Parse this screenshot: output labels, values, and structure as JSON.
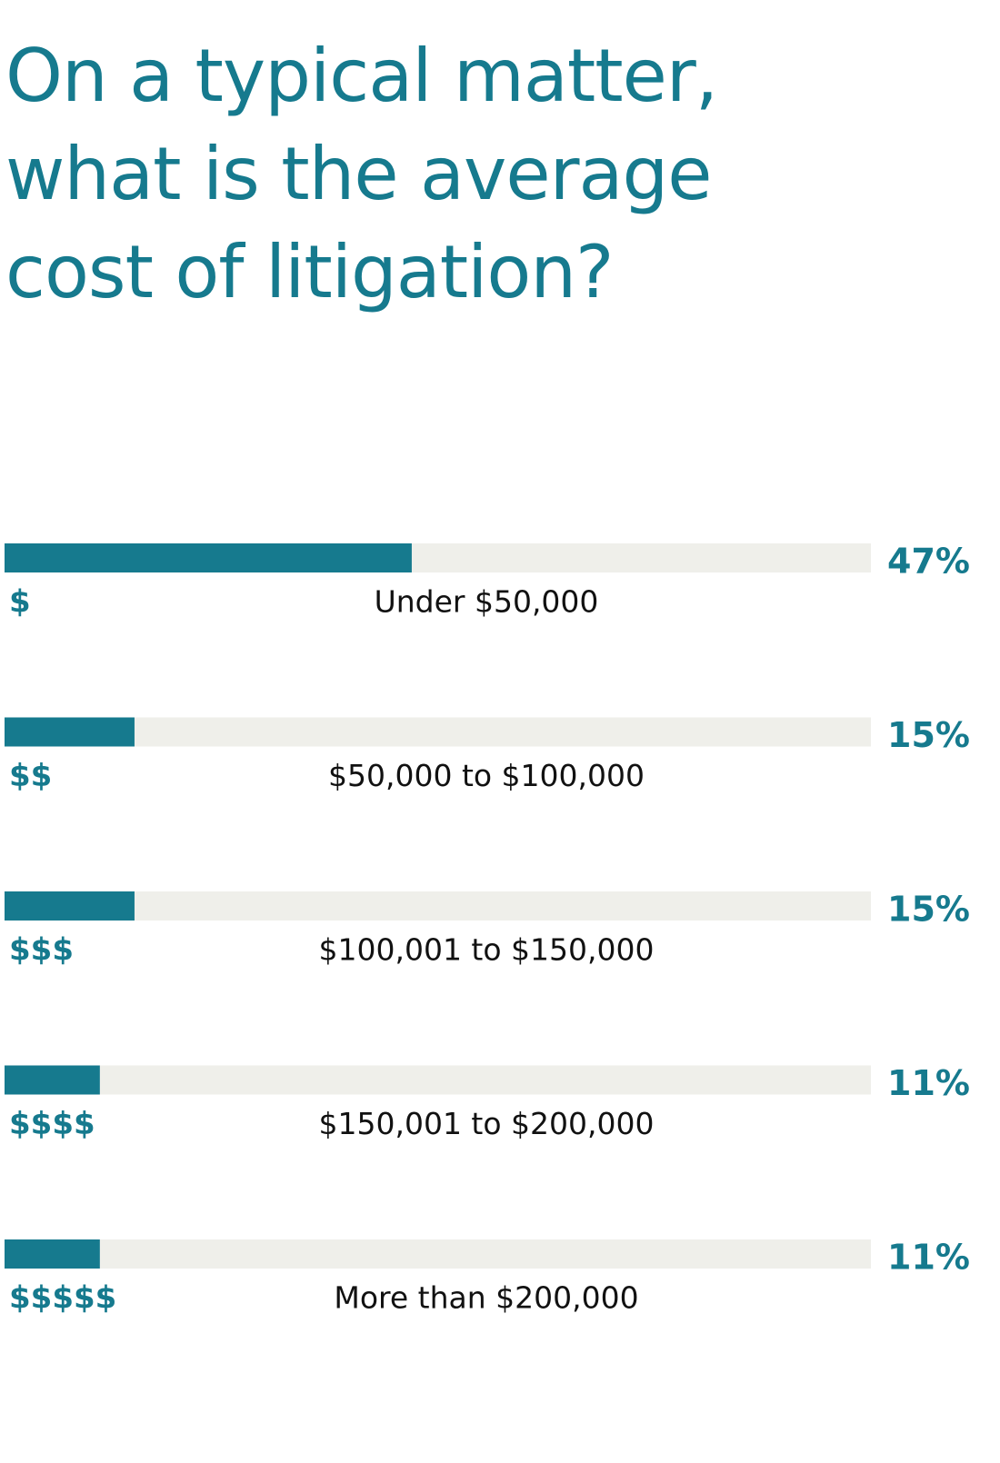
{
  "chart_data": {
    "type": "bar",
    "orientation": "horizontal",
    "title": "On a typical matter, what is the average cost of litigation?",
    "categories": [
      "Under $50,000",
      "$50,000 to $100,000",
      "$100,001 to $150,000",
      "$150,001 to $200,000",
      "More than $200,000"
    ],
    "tiers": [
      "$",
      "$$",
      "$$$",
      "$$$$",
      "$$$$$"
    ],
    "values": [
      47,
      15,
      15,
      11,
      11
    ],
    "value_labels": [
      "47%",
      "15%",
      "15%",
      "11%",
      "11%"
    ],
    "xlim": [
      0,
      100
    ],
    "color": "#167a8e",
    "track_color": "#efefea"
  }
}
